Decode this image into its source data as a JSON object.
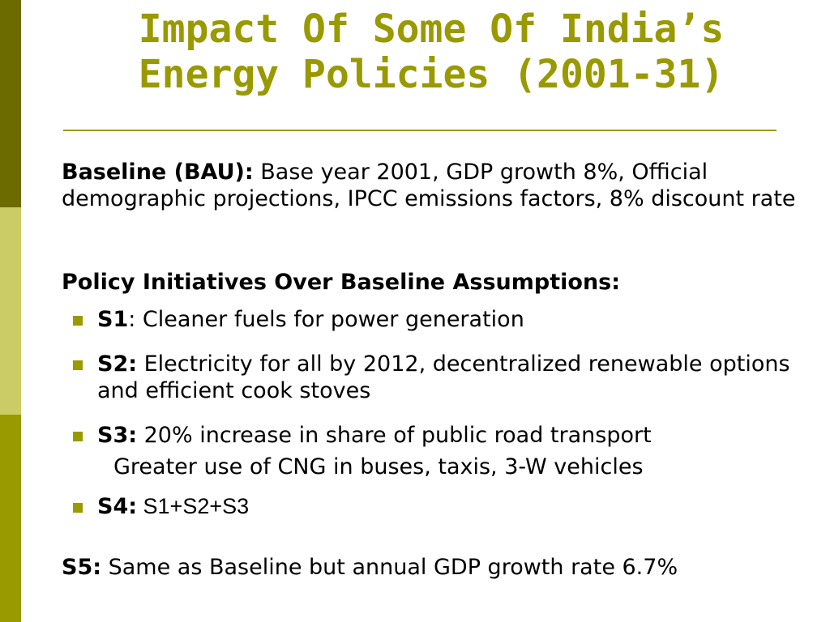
{
  "slide": {
    "title_line1": "Impact Of Some Of India’s",
    "title_line2": "Energy Policies (2001-31)",
    "baseline": {
      "label": "Baseline (BAU):",
      "text": " Base year 2001, GDP growth 8%, Official demographic projections, IPCC emissions  factors, 8% discount rate"
    },
    "policy_heading": "Policy Initiatives Over Baseline Assumptions:",
    "scenarios": [
      {
        "label": "S1",
        "separator": ": ",
        "text": "Cleaner fuels for power generation"
      },
      {
        "label": "S2:",
        "text": " Electricity for all by 2012, decentralized renewable options and efficient cook stoves"
      },
      {
        "label": "S3:",
        "text": "  20% increase in share of public road transport",
        "text_line2": "Greater use of CNG in buses, taxis, 3-W vehicles"
      },
      {
        "label": "S4:",
        "text": " S1+S2+S3"
      }
    ],
    "s5": {
      "label": "S5:",
      "text": " Same as Baseline but annual GDP growth rate 6.7%"
    }
  },
  "colors": {
    "accent": "#999900",
    "bar_dark": "#6b6b00",
    "bar_light": "#cccc66"
  }
}
